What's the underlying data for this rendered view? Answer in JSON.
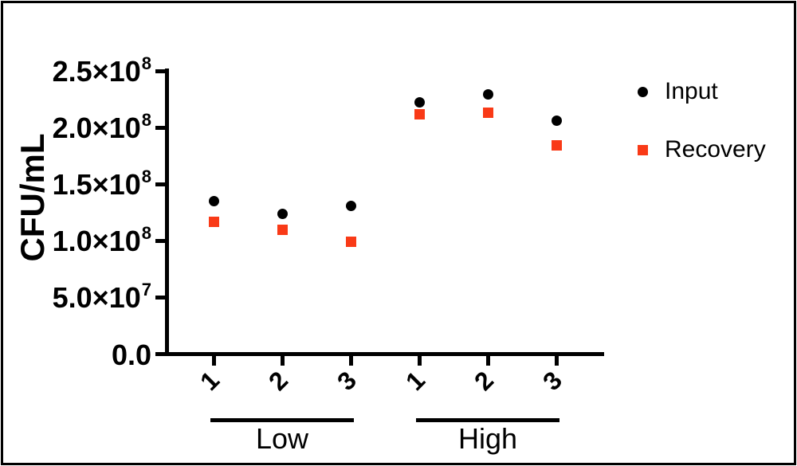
{
  "figure": {
    "background": "#ffffff",
    "border_color": "#000000",
    "axis_color": "#000000"
  },
  "legend": {
    "position": "right-top",
    "items": [
      {
        "label": "Input",
        "marker": "circle",
        "color": "#000000"
      },
      {
        "label": "Recovery",
        "marker": "square",
        "color": "#f93a17"
      }
    ]
  },
  "chart_data": {
    "type": "scatter",
    "title": "",
    "xlabel": "",
    "ylabel": "CFU/mL",
    "ylim": [
      0,
      250000000
    ],
    "grid": false,
    "yticks": [
      {
        "value": 0,
        "mantissa": "0.0",
        "exp": ""
      },
      {
        "value": 50000000,
        "mantissa": "5.0×10",
        "exp": "7"
      },
      {
        "value": 100000000,
        "mantissa": "1.0×10",
        "exp": "8"
      },
      {
        "value": 150000000,
        "mantissa": "1.5×10",
        "exp": "8"
      },
      {
        "value": 200000000,
        "mantissa": "2.0×10",
        "exp": "8"
      },
      {
        "value": 250000000,
        "mantissa": "2.5×10",
        "exp": "8"
      }
    ],
    "x_categories": [
      "1",
      "2",
      "3",
      "1",
      "2",
      "3"
    ],
    "groups": [
      {
        "label": "Low",
        "from": 0,
        "to": 2
      },
      {
        "label": "High",
        "from": 3,
        "to": 5
      }
    ],
    "series": [
      {
        "name": "Input",
        "marker": "circle",
        "color": "#000000",
        "values": [
          135000000,
          124000000,
          131000000,
          222000000,
          229000000,
          206000000
        ]
      },
      {
        "name": "Recovery",
        "marker": "square",
        "color": "#f93a17",
        "values": [
          117000000,
          110000000,
          99000000,
          212000000,
          213000000,
          184000000
        ]
      }
    ]
  }
}
